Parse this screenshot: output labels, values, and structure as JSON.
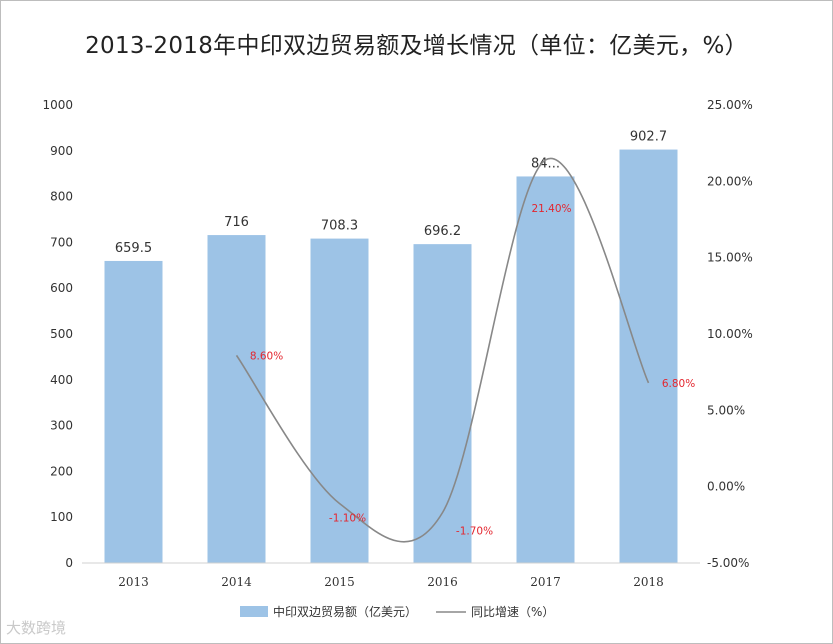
{
  "title": "2013-2018年中印双边贸易额及增长情况（单位：亿美元，%）",
  "chart_data": {
    "type": "bar+line",
    "categories": [
      "2013",
      "2014",
      "2015",
      "2016",
      "2017",
      "2018"
    ],
    "bar_series": {
      "name": "中印双边贸易额（亿美元）",
      "values": [
        659.5,
        716,
        708.3,
        696.2,
        844.0,
        902.7
      ],
      "labels": [
        "659.5",
        "716",
        "708.3",
        "696.2",
        "84...",
        "902.7"
      ],
      "color": "#9dc3e6"
    },
    "line_series": {
      "name": "同比增速（%）",
      "values": [
        null,
        8.6,
        -1.1,
        -1.7,
        21.4,
        6.8
      ],
      "labels": [
        "",
        "8.60%",
        "-1.10%",
        "-1.70%",
        "21.40%",
        "6.80%"
      ],
      "color": "#888888",
      "label_color": "#e3262f"
    },
    "left_axis": {
      "min": 0,
      "max": 1000,
      "step": 100
    },
    "right_axis": {
      "min": -5,
      "max": 25,
      "step": 5,
      "tick_labels": [
        "-5.00%",
        "0.00%",
        "5.00%",
        "10.00%",
        "15.00%",
        "20.00%",
        "25.00%"
      ]
    },
    "legend_position": "bottom"
  },
  "watermark": "大数跨境"
}
